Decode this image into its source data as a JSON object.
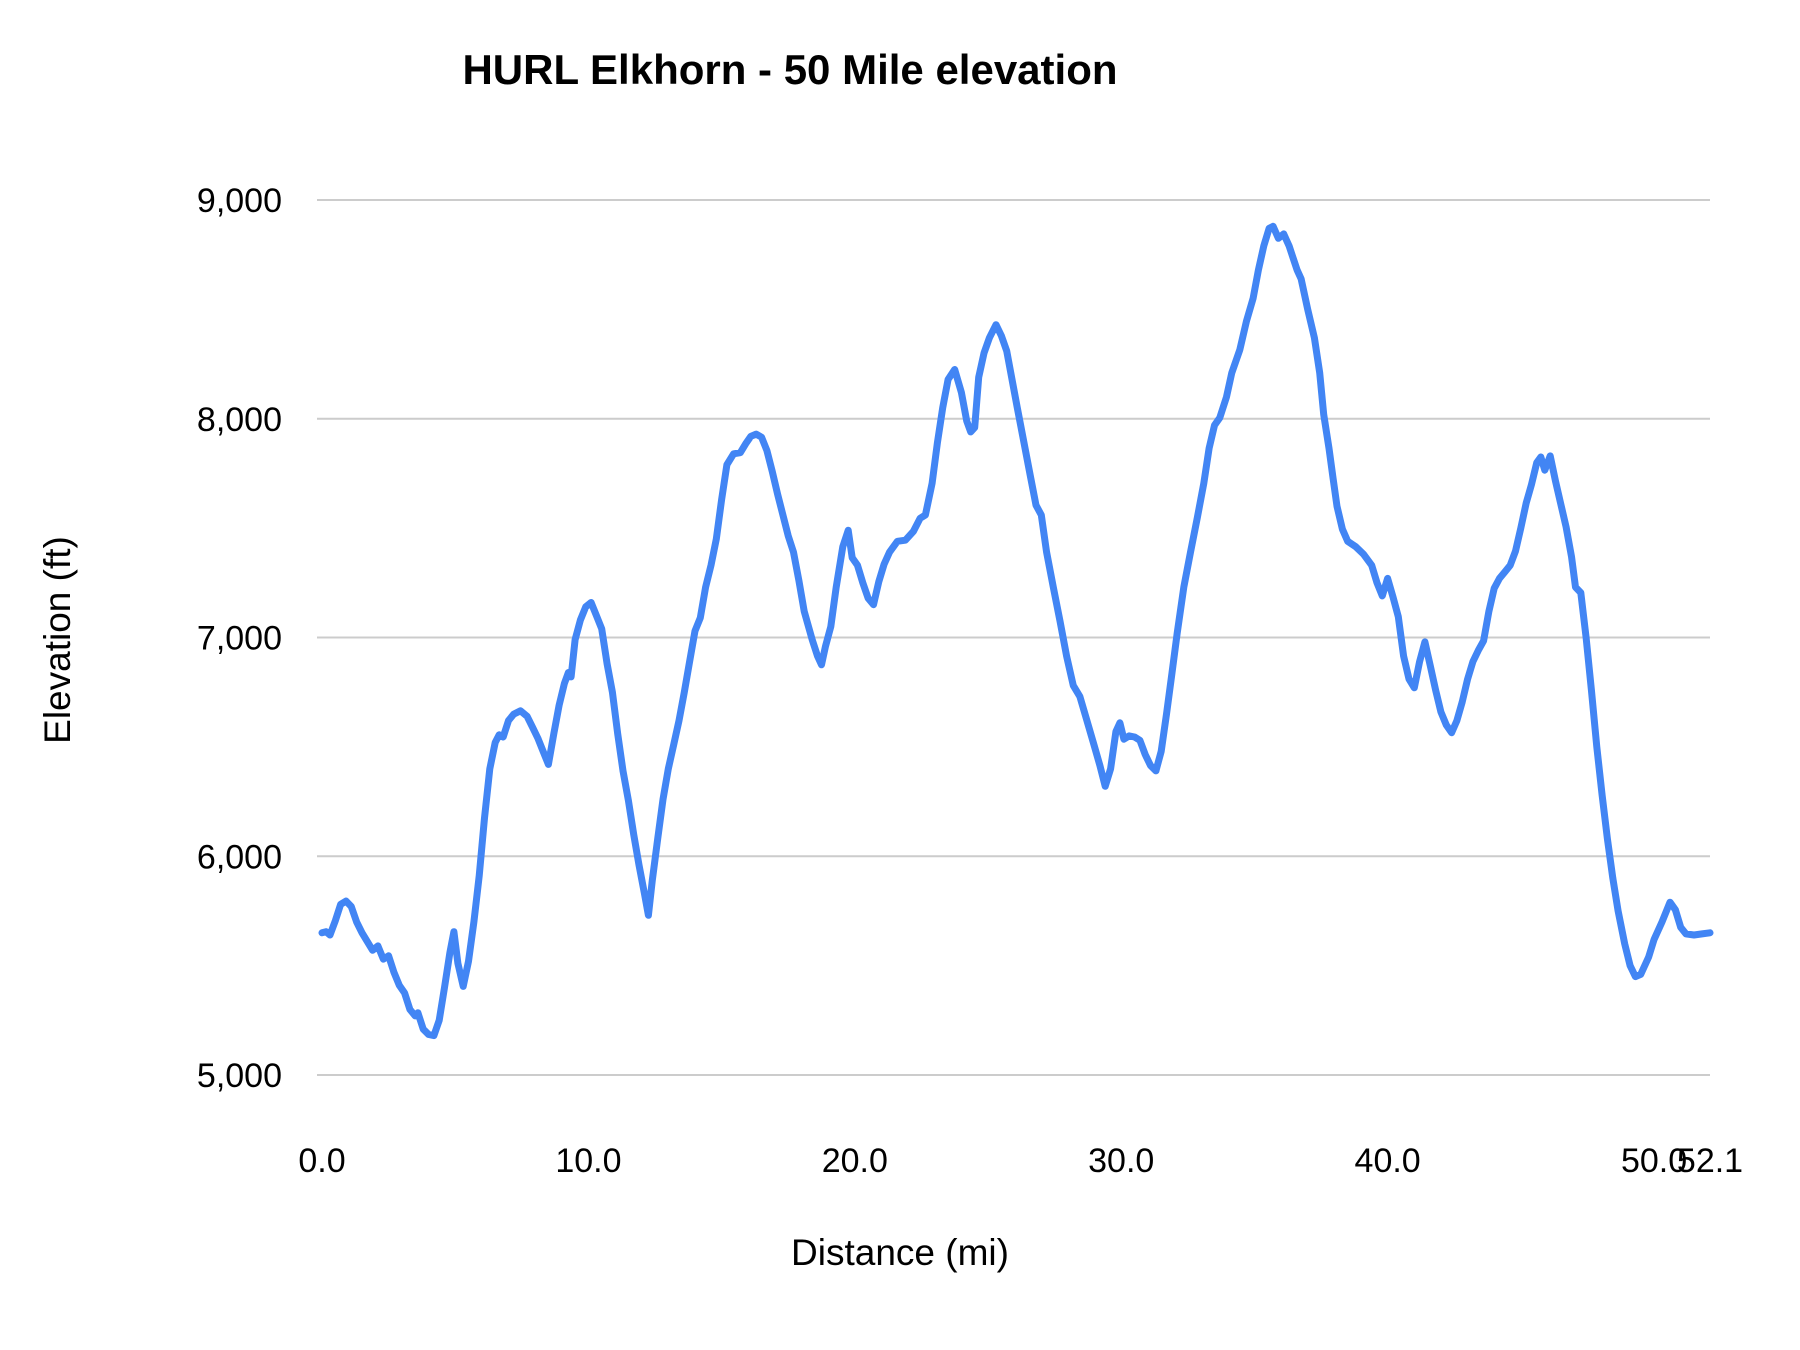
{
  "chart_data": {
    "type": "line",
    "title": "HURL Elkhorn - 50 Mile elevation",
    "xlabel": "Distance (mi)",
    "ylabel": "Elevation (ft)",
    "xlim": [
      0,
      52.1
    ],
    "ylim": [
      5000,
      9000
    ],
    "grid": "horizontal-only",
    "legend": "none",
    "x_ticks": [
      0,
      10,
      20,
      30,
      40,
      50,
      52.1
    ],
    "x_tick_labels": [
      "0.0",
      "10.0",
      "20.0",
      "30.0",
      "40.0",
      "50.0",
      "52.1"
    ],
    "y_ticks": [
      5000,
      6000,
      7000,
      8000,
      9000
    ],
    "y_tick_labels": [
      "5,000",
      "6,000",
      "7,000",
      "8,000",
      "9,000"
    ],
    "colors": {
      "line": "#4285f4",
      "gridline": "#cccccc",
      "text": "#000000"
    },
    "series": [
      {
        "name": "Elevation",
        "color": "#4285f4",
        "points": [
          [
            0.0,
            5650
          ],
          [
            0.15,
            5655
          ],
          [
            0.3,
            5640
          ],
          [
            0.5,
            5705
          ],
          [
            0.7,
            5780
          ],
          [
            0.9,
            5795
          ],
          [
            1.1,
            5770
          ],
          [
            1.3,
            5700
          ],
          [
            1.5,
            5650
          ],
          [
            1.7,
            5610
          ],
          [
            1.9,
            5570
          ],
          [
            2.1,
            5590
          ],
          [
            2.3,
            5530
          ],
          [
            2.5,
            5545
          ],
          [
            2.7,
            5470
          ],
          [
            2.9,
            5410
          ],
          [
            3.1,
            5375
          ],
          [
            3.3,
            5300
          ],
          [
            3.5,
            5270
          ],
          [
            3.6,
            5285
          ],
          [
            3.8,
            5210
          ],
          [
            4.0,
            5185
          ],
          [
            4.2,
            5180
          ],
          [
            4.4,
            5250
          ],
          [
            4.6,
            5400
          ],
          [
            4.8,
            5560
          ],
          [
            4.95,
            5655
          ],
          [
            5.1,
            5510
          ],
          [
            5.3,
            5405
          ],
          [
            5.5,
            5520
          ],
          [
            5.7,
            5700
          ],
          [
            5.9,
            5910
          ],
          [
            6.1,
            6175
          ],
          [
            6.3,
            6400
          ],
          [
            6.5,
            6520
          ],
          [
            6.65,
            6555
          ],
          [
            6.8,
            6545
          ],
          [
            7.0,
            6620
          ],
          [
            7.2,
            6650
          ],
          [
            7.45,
            6665
          ],
          [
            7.7,
            6640
          ],
          [
            7.9,
            6590
          ],
          [
            8.1,
            6540
          ],
          [
            8.3,
            6480
          ],
          [
            8.5,
            6420
          ],
          [
            8.7,
            6560
          ],
          [
            8.9,
            6690
          ],
          [
            9.1,
            6790
          ],
          [
            9.25,
            6840
          ],
          [
            9.35,
            6820
          ],
          [
            9.5,
            6990
          ],
          [
            9.7,
            7080
          ],
          [
            9.9,
            7140
          ],
          [
            10.1,
            7160
          ],
          [
            10.3,
            7100
          ],
          [
            10.5,
            7040
          ],
          [
            10.7,
            6880
          ],
          [
            10.9,
            6750
          ],
          [
            11.1,
            6560
          ],
          [
            11.3,
            6390
          ],
          [
            11.5,
            6255
          ],
          [
            11.7,
            6100
          ],
          [
            11.9,
            5960
          ],
          [
            12.1,
            5830
          ],
          [
            12.25,
            5730
          ],
          [
            12.4,
            5890
          ],
          [
            12.6,
            6080
          ],
          [
            12.8,
            6260
          ],
          [
            13.0,
            6400
          ],
          [
            13.2,
            6510
          ],
          [
            13.4,
            6620
          ],
          [
            13.6,
            6750
          ],
          [
            13.8,
            6890
          ],
          [
            14.0,
            7030
          ],
          [
            14.2,
            7090
          ],
          [
            14.4,
            7230
          ],
          [
            14.6,
            7330
          ],
          [
            14.8,
            7450
          ],
          [
            15.0,
            7630
          ],
          [
            15.2,
            7790
          ],
          [
            15.45,
            7840
          ],
          [
            15.7,
            7845
          ],
          [
            15.9,
            7885
          ],
          [
            16.1,
            7920
          ],
          [
            16.3,
            7930
          ],
          [
            16.5,
            7915
          ],
          [
            16.7,
            7855
          ],
          [
            16.9,
            7760
          ],
          [
            17.1,
            7655
          ],
          [
            17.3,
            7560
          ],
          [
            17.5,
            7465
          ],
          [
            17.7,
            7390
          ],
          [
            17.9,
            7260
          ],
          [
            18.1,
            7120
          ],
          [
            18.4,
            6990
          ],
          [
            18.6,
            6915
          ],
          [
            18.75,
            6875
          ],
          [
            18.9,
            6960
          ],
          [
            19.1,
            7050
          ],
          [
            19.3,
            7230
          ],
          [
            19.55,
            7415
          ],
          [
            19.75,
            7490
          ],
          [
            19.9,
            7365
          ],
          [
            20.1,
            7330
          ],
          [
            20.3,
            7250
          ],
          [
            20.5,
            7180
          ],
          [
            20.7,
            7150
          ],
          [
            20.9,
            7255
          ],
          [
            21.1,
            7335
          ],
          [
            21.3,
            7390
          ],
          [
            21.6,
            7440
          ],
          [
            21.9,
            7445
          ],
          [
            22.2,
            7485
          ],
          [
            22.45,
            7545
          ],
          [
            22.65,
            7560
          ],
          [
            22.9,
            7705
          ],
          [
            23.1,
            7890
          ],
          [
            23.3,
            8050
          ],
          [
            23.5,
            8180
          ],
          [
            23.75,
            8225
          ],
          [
            24.0,
            8120
          ],
          [
            24.2,
            7990
          ],
          [
            24.35,
            7940
          ],
          [
            24.5,
            7960
          ],
          [
            24.65,
            8190
          ],
          [
            24.85,
            8300
          ],
          [
            25.05,
            8370
          ],
          [
            25.3,
            8430
          ],
          [
            25.5,
            8380
          ],
          [
            25.7,
            8310
          ],
          [
            25.9,
            8180
          ],
          [
            26.1,
            8050
          ],
          [
            26.35,
            7890
          ],
          [
            26.6,
            7730
          ],
          [
            26.8,
            7605
          ],
          [
            27.0,
            7560
          ],
          [
            27.2,
            7390
          ],
          [
            27.45,
            7230
          ],
          [
            27.7,
            7075
          ],
          [
            27.95,
            6915
          ],
          [
            28.2,
            6780
          ],
          [
            28.45,
            6730
          ],
          [
            28.7,
            6625
          ],
          [
            28.95,
            6520
          ],
          [
            29.2,
            6415
          ],
          [
            29.4,
            6320
          ],
          [
            29.6,
            6400
          ],
          [
            29.8,
            6570
          ],
          [
            29.95,
            6610
          ],
          [
            30.1,
            6535
          ],
          [
            30.3,
            6550
          ],
          [
            30.5,
            6545
          ],
          [
            30.7,
            6530
          ],
          [
            30.9,
            6465
          ],
          [
            31.1,
            6415
          ],
          [
            31.3,
            6390
          ],
          [
            31.5,
            6480
          ],
          [
            31.7,
            6650
          ],
          [
            31.9,
            6835
          ],
          [
            32.1,
            7020
          ],
          [
            32.35,
            7230
          ],
          [
            32.6,
            7390
          ],
          [
            32.85,
            7545
          ],
          [
            33.1,
            7705
          ],
          [
            33.3,
            7865
          ],
          [
            33.5,
            7970
          ],
          [
            33.7,
            8005
          ],
          [
            33.95,
            8100
          ],
          [
            34.15,
            8210
          ],
          [
            34.45,
            8315
          ],
          [
            34.7,
            8445
          ],
          [
            34.95,
            8550
          ],
          [
            35.15,
            8680
          ],
          [
            35.35,
            8790
          ],
          [
            35.55,
            8870
          ],
          [
            35.7,
            8880
          ],
          [
            35.9,
            8825
          ],
          [
            36.1,
            8845
          ],
          [
            36.3,
            8790
          ],
          [
            36.45,
            8735
          ],
          [
            36.6,
            8680
          ],
          [
            36.75,
            8640
          ],
          [
            37.0,
            8500
          ],
          [
            37.25,
            8370
          ],
          [
            37.45,
            8210
          ],
          [
            37.6,
            8020
          ],
          [
            37.8,
            7865
          ],
          [
            37.95,
            7730
          ],
          [
            38.1,
            7600
          ],
          [
            38.3,
            7495
          ],
          [
            38.5,
            7440
          ],
          [
            38.8,
            7415
          ],
          [
            39.1,
            7380
          ],
          [
            39.4,
            7330
          ],
          [
            39.6,
            7250
          ],
          [
            39.8,
            7190
          ],
          [
            40.0,
            7270
          ],
          [
            40.2,
            7185
          ],
          [
            40.4,
            7095
          ],
          [
            40.6,
            6915
          ],
          [
            40.8,
            6810
          ],
          [
            41.0,
            6770
          ],
          [
            41.2,
            6890
          ],
          [
            41.4,
            6980
          ],
          [
            41.6,
            6870
          ],
          [
            41.8,
            6760
          ],
          [
            42.0,
            6660
          ],
          [
            42.2,
            6600
          ],
          [
            42.4,
            6565
          ],
          [
            42.6,
            6620
          ],
          [
            42.8,
            6705
          ],
          [
            43.0,
            6810
          ],
          [
            43.2,
            6890
          ],
          [
            43.4,
            6940
          ],
          [
            43.6,
            6985
          ],
          [
            43.8,
            7120
          ],
          [
            44.0,
            7225
          ],
          [
            44.2,
            7270
          ],
          [
            44.4,
            7300
          ],
          [
            44.6,
            7330
          ],
          [
            44.8,
            7395
          ],
          [
            45.0,
            7500
          ],
          [
            45.2,
            7615
          ],
          [
            45.4,
            7700
          ],
          [
            45.6,
            7800
          ],
          [
            45.75,
            7825
          ],
          [
            45.9,
            7765
          ],
          [
            46.1,
            7830
          ],
          [
            46.3,
            7715
          ],
          [
            46.5,
            7610
          ],
          [
            46.7,
            7505
          ],
          [
            46.9,
            7370
          ],
          [
            47.05,
            7230
          ],
          [
            47.25,
            7205
          ],
          [
            47.45,
            7000
          ],
          [
            47.65,
            6760
          ],
          [
            47.85,
            6500
          ],
          [
            48.05,
            6280
          ],
          [
            48.25,
            6080
          ],
          [
            48.45,
            5900
          ],
          [
            48.65,
            5750
          ],
          [
            48.9,
            5600
          ],
          [
            49.1,
            5500
          ],
          [
            49.3,
            5450
          ],
          [
            49.5,
            5460
          ],
          [
            49.8,
            5540
          ],
          [
            50.0,
            5620
          ],
          [
            50.3,
            5700
          ],
          [
            50.6,
            5790
          ],
          [
            50.8,
            5755
          ],
          [
            51.0,
            5675
          ],
          [
            51.2,
            5645
          ],
          [
            51.5,
            5640
          ],
          [
            51.8,
            5645
          ],
          [
            52.1,
            5650
          ]
        ]
      }
    ]
  }
}
